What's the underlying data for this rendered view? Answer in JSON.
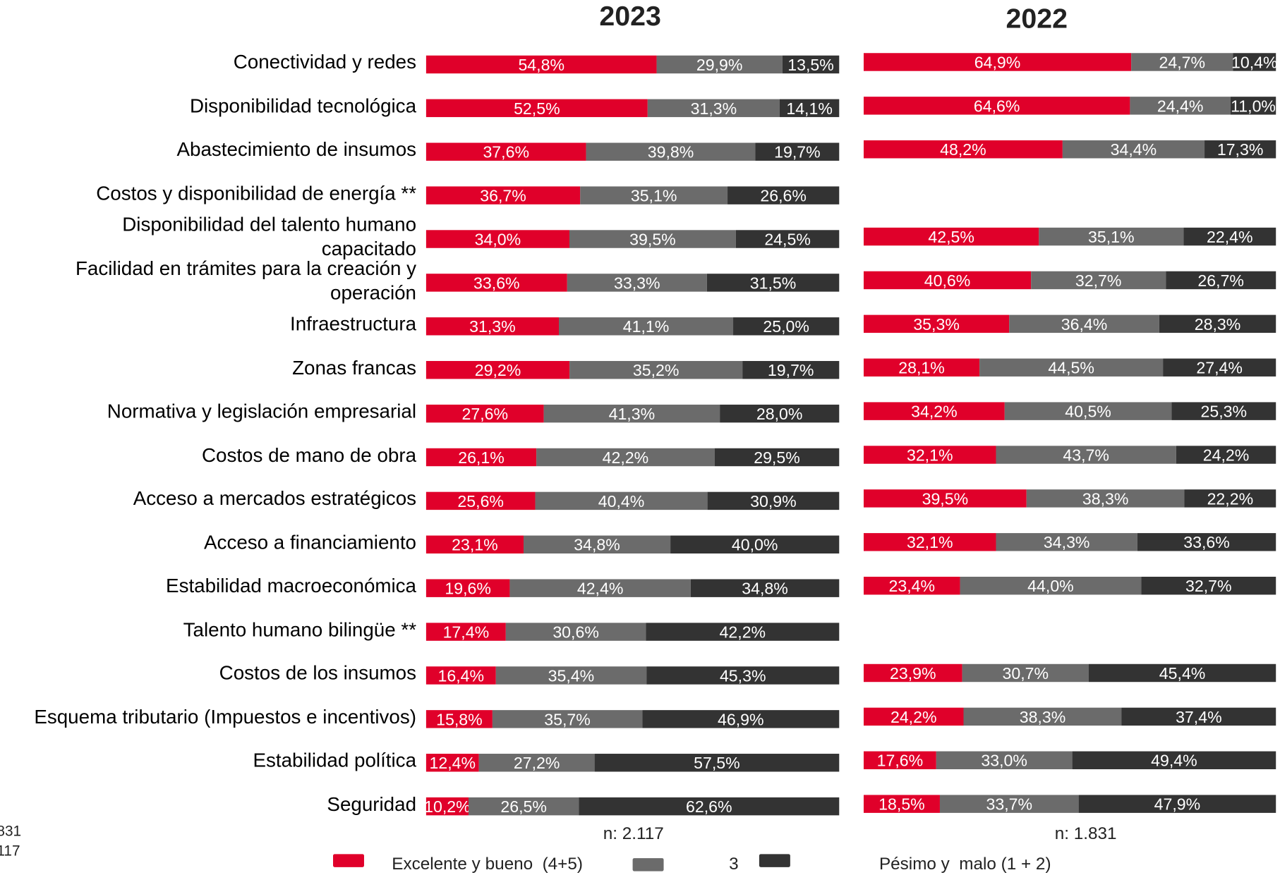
{
  "fragments": [
    "831",
    "117"
  ],
  "chart_data": [
    {
      "type": "bar",
      "orientation": "horizontal",
      "stacked": true,
      "title": "2023",
      "categories": [
        "Conectividad y redes",
        "Disponibilidad tecnológica",
        "Abastecimiento de insumos",
        "Costos y disponibilidad de energía **",
        "Disponibilidad del talento humano\ncapacitado",
        "Facilidad en trámites para la creación y\noperación",
        "Infraestructura",
        "Zonas francas",
        "Normativa y legislación empresarial",
        "Costos de mano de obra",
        "Acceso a mercados estratégicos",
        "Acceso a financiamiento",
        "Estabilidad macroeconómica",
        "Talento humano bilingüe **",
        "Costos de los insumos",
        "Esquema tributario (Impuestos e incentivos)",
        "Estabilidad política",
        "Seguridad"
      ],
      "series": [
        {
          "name": "Excelente y bueno  (4+5)",
          "color": "#e0002a",
          "values": [
            54.8,
            52.5,
            37.6,
            36.7,
            34.0,
            33.6,
            31.3,
            29.2,
            27.6,
            26.1,
            25.6,
            23.1,
            19.6,
            17.4,
            16.4,
            15.8,
            12.4,
            10.2
          ],
          "value_labels": [
            "54,8%",
            "52,5%",
            "37,6%",
            "36,7%",
            "34,0%",
            "33,6%",
            "31,3%",
            "29,2%",
            "27,6%",
            "26,1%",
            "25,6%",
            "23,1%",
            "19,6%",
            "17,4%",
            "16,4%",
            "15,8%",
            "12,4%",
            "10,2%"
          ]
        },
        {
          "name": "3",
          "color": "#6b6b6b",
          "values": [
            29.9,
            31.3,
            39.8,
            35.1,
            39.5,
            33.3,
            41.1,
            35.2,
            41.3,
            42.2,
            40.4,
            34.8,
            42.4,
            30.6,
            35.4,
            35.7,
            27.2,
            26.5
          ],
          "value_labels": [
            "29,9%",
            "31,3%",
            "39,8%",
            "35,1%",
            "39,5%",
            "33,3%",
            "41,1%",
            "35,2%",
            "41,3%",
            "42,2%",
            "40,4%",
            "34,8%",
            "42,4%",
            "30,6%",
            "35,4%",
            "35,7%",
            "27,2%",
            "26,5%"
          ]
        },
        {
          "name": "Pésimo y  malo (1 + 2)",
          "color": "#333333",
          "values": [
            13.5,
            14.1,
            19.7,
            26.6,
            24.5,
            31.5,
            25.0,
            19.7,
            28.0,
            29.5,
            30.9,
            40.0,
            34.8,
            42.2,
            45.3,
            46.9,
            57.5,
            62.6
          ],
          "value_labels": [
            "13,5%",
            "14,1%",
            "19,7%",
            "26,6%",
            "24,5%",
            "31,5%",
            "25,0%",
            "19,7%",
            "28,0%",
            "29,5%",
            "30,9%",
            "40,0%",
            "34,8%",
            "42,2%",
            "45,3%",
            "46,9%",
            "57,5%",
            "62,6%"
          ]
        }
      ],
      "note": "n: 2.117"
    },
    {
      "type": "bar",
      "orientation": "horizontal",
      "stacked": true,
      "title": "2022",
      "series": [
        {
          "color": "#e0002a",
          "values": [
            64.9,
            64.6,
            48.2,
            null,
            42.5,
            40.6,
            35.3,
            28.1,
            34.2,
            32.1,
            39.5,
            32.1,
            23.4,
            null,
            23.9,
            24.2,
            17.6,
            18.5
          ],
          "value_labels": [
            "64,9%",
            "64,6%",
            "48,2%",
            null,
            "42,5%",
            "40,6%",
            "35,3%",
            "28,1%",
            "34,2%",
            "32,1%",
            "39,5%",
            "32,1%",
            "23,4%",
            null,
            "23,9%",
            "24,2%",
            "17,6%",
            "18,5%"
          ]
        },
        {
          "color": "#6b6b6b",
          "values": [
            24.7,
            24.4,
            34.4,
            null,
            35.1,
            32.7,
            36.4,
            44.5,
            40.5,
            43.7,
            38.3,
            34.3,
            44.0,
            null,
            30.7,
            38.3,
            33.0,
            33.7
          ],
          "value_labels": [
            "24,7%",
            "24,4%",
            "34,4%",
            null,
            "35,1%",
            "32,7%",
            "36,4%",
            "44,5%",
            "40,5%",
            "43,7%",
            "38,3%",
            "34,3%",
            "44,0%",
            null,
            "30,7%",
            "38,3%",
            "33,0%",
            "33,7%"
          ]
        },
        {
          "color": "#333333",
          "values": [
            10.4,
            11.0,
            17.3,
            null,
            22.4,
            26.7,
            28.3,
            27.4,
            25.3,
            24.2,
            22.2,
            33.6,
            32.7,
            null,
            45.4,
            37.4,
            49.4,
            47.9
          ],
          "value_labels": [
            "10,4%",
            "11,0%",
            "17,3%",
            null,
            "22,4%",
            "26,7%",
            "28,3%",
            "27,4%",
            "25,3%",
            "24,2%",
            "22,2%",
            "33,6%",
            "32,7%",
            null,
            "45,4%",
            "37,4%",
            "49,4%",
            "47,9%"
          ]
        }
      ],
      "note": "n: 1.831"
    }
  ]
}
